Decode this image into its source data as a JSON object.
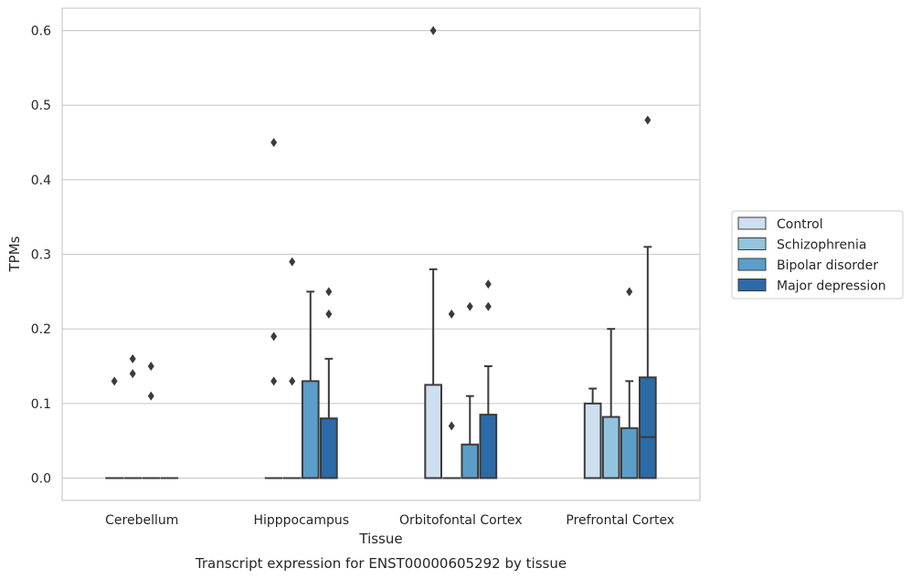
{
  "chart_data": {
    "type": "box",
    "caption": "Transcript expression for ENST00000605292 by tissue",
    "xlabel": "Tissue",
    "ylabel": "TPMs",
    "ylim": [
      -0.03,
      0.63
    ],
    "yticks": [
      "0.0",
      "0.1",
      "0.2",
      "0.3",
      "0.4",
      "0.5",
      "0.6"
    ],
    "grid": true,
    "legend_position": "right",
    "categories": [
      "Cerebellum",
      "Hipppocampus",
      "Orbitofontal Cortex",
      "Prefrontal Cortex"
    ],
    "series": [
      {
        "name": "Control",
        "color": "#cedff0",
        "boxes": [
          {
            "q1": 0,
            "median": 0,
            "q3": 0,
            "whisker_low": 0,
            "whisker_high": 0,
            "outliers": [
              0.13
            ]
          },
          {
            "q1": 0,
            "median": 0,
            "q3": 0,
            "whisker_low": 0,
            "whisker_high": 0,
            "outliers": [
              0.13,
              0.19,
              0.45
            ]
          },
          {
            "q1": 0,
            "median": 0,
            "q3": 0.125,
            "whisker_low": 0,
            "whisker_high": 0.28,
            "outliers": [
              0.6
            ]
          },
          {
            "q1": 0,
            "median": 0,
            "q3": 0.1,
            "whisker_low": 0,
            "whisker_high": 0.12,
            "outliers": []
          }
        ]
      },
      {
        "name": "Schizophrenia",
        "color": "#93c4de",
        "boxes": [
          {
            "q1": 0,
            "median": 0,
            "q3": 0,
            "whisker_low": 0,
            "whisker_high": 0,
            "outliers": [
              0.14,
              0.16
            ]
          },
          {
            "q1": 0,
            "median": 0,
            "q3": 0,
            "whisker_low": 0,
            "whisker_high": 0,
            "outliers": [
              0.13,
              0.29
            ]
          },
          {
            "q1": 0,
            "median": 0,
            "q3": 0,
            "whisker_low": 0,
            "whisker_high": 0,
            "outliers": [
              0.07,
              0.22
            ]
          },
          {
            "q1": 0,
            "median": 0,
            "q3": 0.082,
            "whisker_low": 0,
            "whisker_high": 0.2,
            "outliers": []
          }
        ]
      },
      {
        "name": "Bipolar disorder",
        "color": "#5b9ec9",
        "boxes": [
          {
            "q1": 0,
            "median": 0,
            "q3": 0,
            "whisker_low": 0,
            "whisker_high": 0,
            "outliers": [
              0.11,
              0.15
            ]
          },
          {
            "q1": 0,
            "median": 0,
            "q3": 0.13,
            "whisker_low": 0,
            "whisker_high": 0.25,
            "outliers": []
          },
          {
            "q1": 0,
            "median": 0,
            "q3": 0.045,
            "whisker_low": 0,
            "whisker_high": 0.11,
            "outliers": [
              0.23
            ]
          },
          {
            "q1": 0,
            "median": 0,
            "q3": 0.067,
            "whisker_low": 0,
            "whisker_high": 0.13,
            "outliers": [
              0.25
            ]
          }
        ]
      },
      {
        "name": "Major depression",
        "color": "#2d6aa8",
        "boxes": [
          {
            "q1": 0,
            "median": 0,
            "q3": 0,
            "whisker_low": 0,
            "whisker_high": 0,
            "outliers": []
          },
          {
            "q1": 0,
            "median": 0,
            "q3": 0.08,
            "whisker_low": 0,
            "whisker_high": 0.16,
            "outliers": [
              0.22,
              0.25
            ]
          },
          {
            "q1": 0,
            "median": 0,
            "q3": 0.085,
            "whisker_low": 0,
            "whisker_high": 0.15,
            "outliers": [
              0.23,
              0.26
            ]
          },
          {
            "q1": 0,
            "median": 0.055,
            "q3": 0.135,
            "whisker_low": 0,
            "whisker_high": 0.31,
            "outliers": [
              0.48
            ]
          }
        ]
      }
    ]
  }
}
